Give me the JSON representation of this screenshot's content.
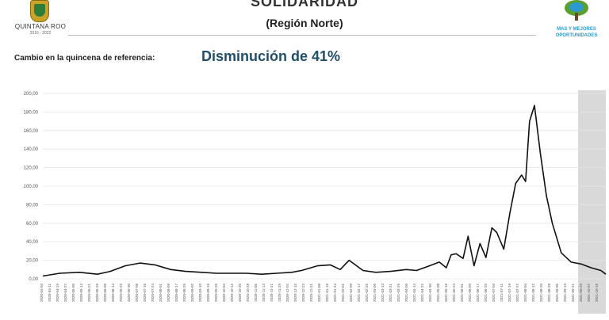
{
  "header": {
    "title": "SOLIDARIDAD",
    "subtitle": "(Región Norte)",
    "logo_left_name": "QUINTANA ROO",
    "logo_left_sub": "2016 - 2022",
    "logo_right_line1": "MAS Y MEJORES",
    "logo_right_line2": "OPORTUNIDADES"
  },
  "summary": {
    "change_label": "Cambio en la quincena de referencia:",
    "change_value": "Disminución de 41%"
  },
  "colors": {
    "line": "#111111",
    "grid": "#e6e6e6",
    "shade": "#d9d9d9",
    "title": "#1f4e6b"
  },
  "chart_data": {
    "type": "line",
    "ylim": [
      0,
      200
    ],
    "yticks": [
      "0,00",
      "20,00",
      "40,00",
      "60,00",
      "80,00",
      "100,00",
      "120,00",
      "140,00",
      "160,00",
      "180,00",
      "200,00"
    ],
    "x_tick_labels": [
      "2020-04-03",
      "2020-04-11",
      "2020-04-19",
      "2020-04-27",
      "2020-05-05",
      "2020-05-13",
      "2020-05-21",
      "2020-05-29",
      "2020-06-06",
      "2020-06-14",
      "2020-06-22",
      "2020-06-30",
      "2020-07-08",
      "2020-07-16",
      "2020-07-24",
      "2020-08-01",
      "2020-08-09",
      "2020-08-17",
      "2020-08-25",
      "2020-09-02",
      "2020-09-10",
      "2020-09-18",
      "2020-09-26",
      "2020-10-04",
      "2020-10-12",
      "2020-10-20",
      "2020-10-28",
      "2020-11-05",
      "2020-11-13",
      "2020-11-21",
      "2020-11-29",
      "2020-12-07",
      "2020-12-15",
      "2020-12-23",
      "2020-12-31",
      "2021-01-08",
      "2021-01-16",
      "2021-01-24",
      "2021-02-01",
      "2021-02-09",
      "2021-02-17",
      "2021-02-25",
      "2021-03-05",
      "2021-03-13",
      "2021-03-21",
      "2021-03-29",
      "2021-04-06",
      "2021-04-14",
      "2021-04-22",
      "2021-04-30",
      "2021-05-08",
      "2021-05-16",
      "2021-05-24",
      "2021-06-01",
      "2021-06-09",
      "2021-06-17",
      "2021-06-25",
      "2021-07-03",
      "2021-07-11",
      "2021-07-19",
      "2021-07-27",
      "2021-08-04",
      "2021-08-12",
      "2021-08-20",
      "2021-08-28",
      "2021-09-05",
      "2021-09-13",
      "2021-09-21",
      "2021-09-29",
      "2021-10-07",
      "2021-10-15"
    ],
    "x_range": [
      "2020-04-03",
      "2021-10-23"
    ],
    "shaded_from": "2021-09-25",
    "series": [
      {
        "x": [
          "2020-04-03",
          "2020-04-20",
          "2020-05-10",
          "2020-05-28",
          "2020-06-10",
          "2020-06-25",
          "2020-07-10",
          "2020-07-25",
          "2020-08-10",
          "2020-08-25",
          "2020-09-10",
          "2020-09-25",
          "2020-10-10",
          "2020-10-25",
          "2020-11-10",
          "2020-11-25",
          "2020-12-10",
          "2020-12-20",
          "2021-01-05",
          "2021-01-18",
          "2021-01-28",
          "2021-02-06",
          "2021-02-20",
          "2021-03-05",
          "2021-03-20",
          "2021-04-05",
          "2021-04-15",
          "2021-04-28",
          "2021-05-08",
          "2021-05-15",
          "2021-05-20",
          "2021-05-25",
          "2021-06-01",
          "2021-06-06",
          "2021-06-12",
          "2021-06-18",
          "2021-06-24",
          "2021-06-30",
          "2021-07-05",
          "2021-07-12",
          "2021-07-18",
          "2021-07-24",
          "2021-07-30",
          "2021-08-03",
          "2021-08-07",
          "2021-08-12",
          "2021-08-18",
          "2021-08-24",
          "2021-08-30",
          "2021-09-08",
          "2021-09-18",
          "2021-09-28",
          "2021-10-08",
          "2021-10-18",
          "2021-10-23"
        ],
        "y": [
          3,
          6,
          7,
          5,
          8,
          14,
          17,
          15,
          10,
          8,
          7,
          6,
          6,
          6,
          5,
          6,
          7,
          9,
          14,
          15,
          10,
          20,
          9,
          7,
          8,
          10,
          9,
          14,
          18,
          12,
          26,
          27,
          22,
          46,
          14,
          38,
          23,
          55,
          50,
          32,
          70,
          103,
          112,
          105,
          170,
          187,
          135,
          90,
          60,
          28,
          18,
          16,
          12,
          9,
          5
        ]
      }
    ]
  }
}
